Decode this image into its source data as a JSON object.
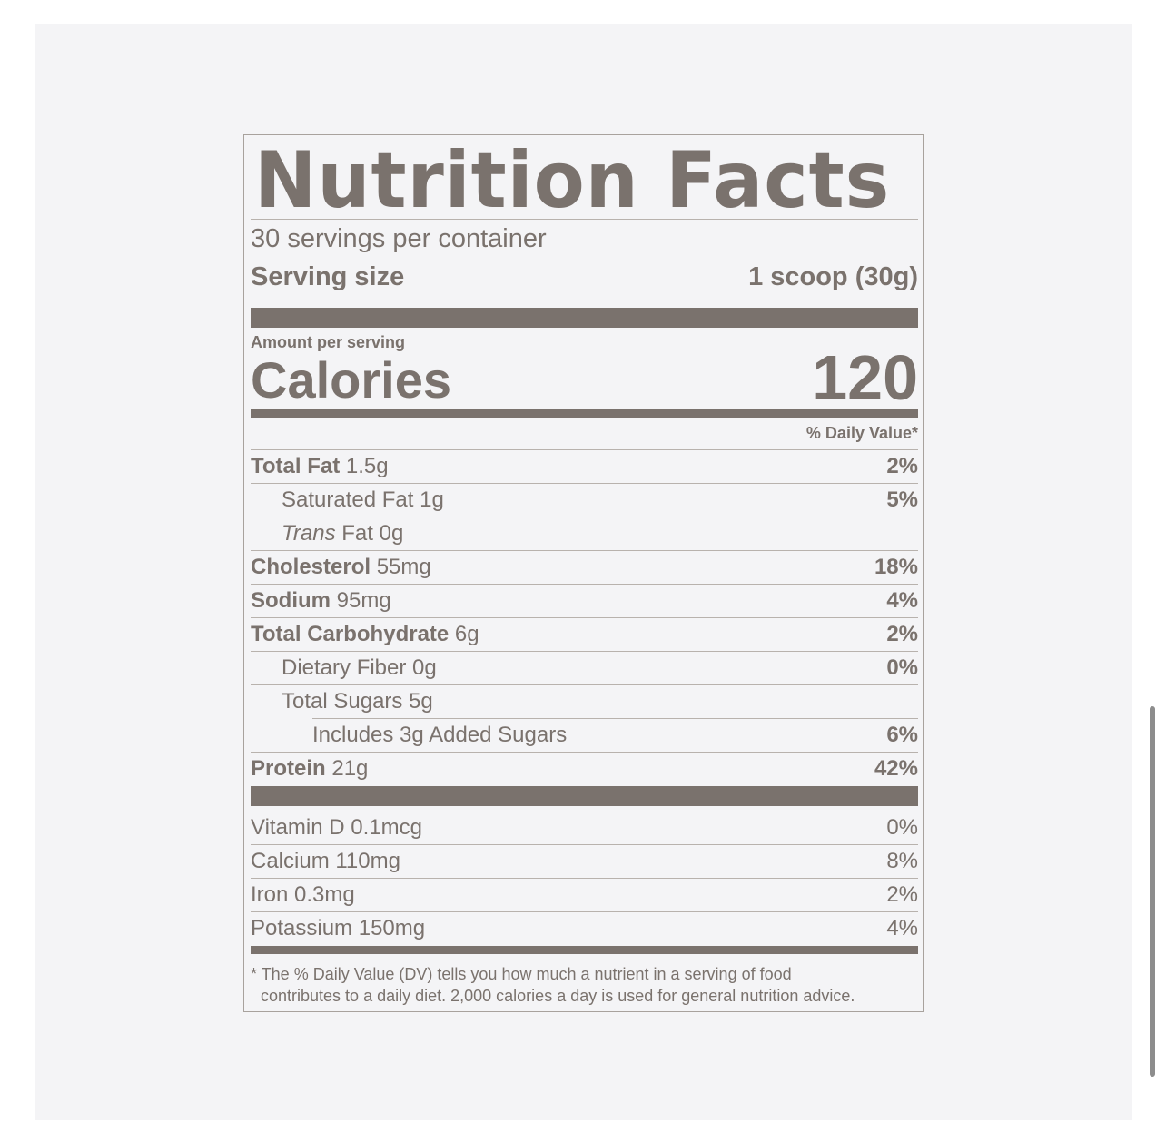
{
  "label": {
    "title": "Nutrition Facts",
    "servings_per_container": "30 servings per container",
    "serving_size_label": "Serving size",
    "serving_size_value": "1 scoop (30g)",
    "amount_per_serving": "Amount per serving",
    "calories_label": "Calories",
    "calories_value": "120",
    "daily_value_header": "% Daily Value*",
    "nutrients": [
      {
        "name": "Total Fat",
        "amount": "1.5g",
        "dv": "2%"
      },
      {
        "name": "Saturated Fat",
        "amount": "1g",
        "dv": "5%"
      },
      {
        "name": "Trans",
        "name_suffix": "Fat",
        "amount": "0g",
        "dv": ""
      },
      {
        "name": "Cholesterol",
        "amount": "55mg",
        "dv": "18%"
      },
      {
        "name": "Sodium",
        "amount": "95mg",
        "dv": "4%"
      },
      {
        "name": "Total Carbohydrate",
        "amount": "6g",
        "dv": "2%"
      },
      {
        "name": "Dietary Fiber",
        "amount": "0g",
        "dv": "0%"
      },
      {
        "name": "Total Sugars",
        "amount": "5g",
        "dv": ""
      },
      {
        "name": "Includes 3g Added Sugars",
        "amount": "",
        "dv": "6%"
      },
      {
        "name": "Protein",
        "amount": "21g",
        "dv": "42%"
      }
    ],
    "vitamins": [
      {
        "name": "Vitamin D",
        "amount": "0.1mcg",
        "dv": "0%"
      },
      {
        "name": "Calcium",
        "amount": "110mg",
        "dv": "8%"
      },
      {
        "name": "Iron",
        "amount": "0.3mg",
        "dv": "2%"
      },
      {
        "name": "Potassium",
        "amount": "150mg",
        "dv": "4%"
      }
    ],
    "footnote_line1": "* The % Daily Value (DV) tells you how much a nutrient in a serving of food",
    "footnote_line2": "contributes to a daily diet. 2,000 calories a day is used for general nutrition advice."
  },
  "colors": {
    "ink": "#7a726d",
    "background": "#f4f4f6"
  }
}
